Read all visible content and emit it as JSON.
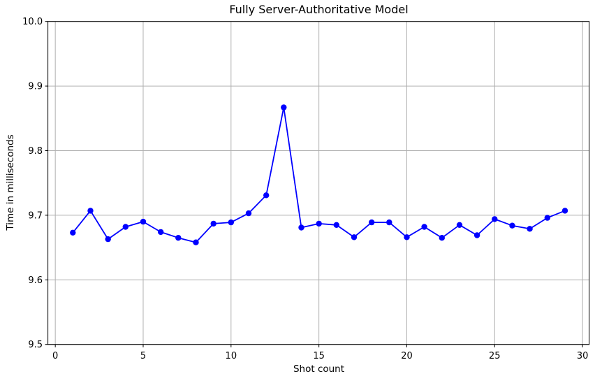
{
  "chart_data": {
    "type": "line",
    "title": "Fully Server-Authoritative Model",
    "xlabel": "Shot count",
    "ylabel": "Time in milliseconds",
    "x": [
      1,
      2,
      3,
      4,
      5,
      6,
      7,
      8,
      9,
      10,
      11,
      12,
      13,
      14,
      15,
      16,
      17,
      18,
      19,
      20,
      21,
      22,
      23,
      24,
      25,
      26,
      27,
      28,
      29
    ],
    "y": [
      9.673,
      9.707,
      9.663,
      9.682,
      9.69,
      9.674,
      9.665,
      9.658,
      9.687,
      9.689,
      9.703,
      9.731,
      9.867,
      9.681,
      9.687,
      9.685,
      9.666,
      9.689,
      9.689,
      9.666,
      9.682,
      9.665,
      9.685,
      9.669,
      9.694,
      9.684,
      9.679,
      9.696,
      9.707
    ],
    "xlim": [
      -0.42,
      30.38
    ],
    "ylim": [
      9.5,
      10.0
    ],
    "xticks": [
      0,
      5,
      10,
      15,
      20,
      25,
      30
    ],
    "xtick_labels": [
      "0",
      "5",
      "10",
      "15",
      "20",
      "25",
      "30"
    ],
    "yticks": [
      9.5,
      9.6,
      9.7,
      9.8,
      9.9,
      10.0
    ],
    "ytick_labels": [
      "9.5",
      "9.6",
      "9.7",
      "9.8",
      "9.9",
      "10.0"
    ],
    "grid": true,
    "legend": false,
    "grid_color": "#b0b0b0",
    "axis_color": "#000000",
    "line_color": "#0000ff",
    "marker": "circle",
    "background_color": "#ffffff"
  }
}
